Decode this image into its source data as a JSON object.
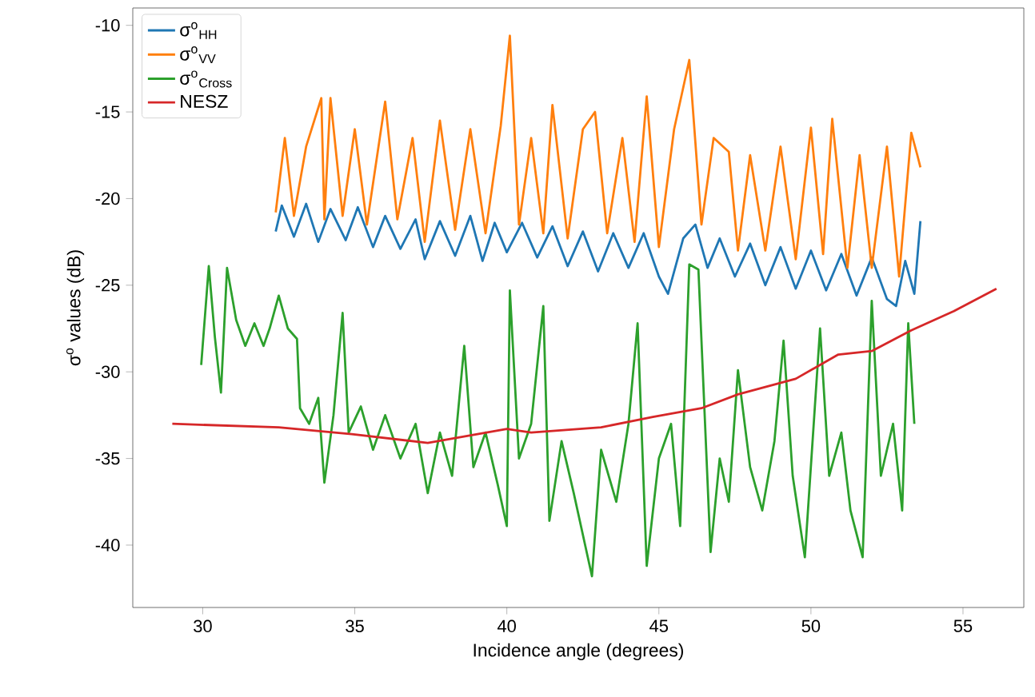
{
  "chart_data": {
    "type": "line",
    "xlabel": "Incidence angle (degrees)",
    "ylabel": "σ$^{o}$ values (dB)",
    "xlim": [
      27.7,
      57.0
    ],
    "ylim": [
      -43.6,
      -9.0
    ],
    "xticks": [
      30,
      35,
      40,
      45,
      50,
      55
    ],
    "yticks": [
      -40,
      -35,
      -30,
      -25,
      -20,
      -15,
      -10
    ],
    "legend": "top left",
    "series": [
      {
        "name": "σ$^{o}$$_{HH}$",
        "color": "#1f77b4",
        "x": [
          32.4,
          32.6,
          33.0,
          33.4,
          33.8,
          34.2,
          34.7,
          35.1,
          35.6,
          36.0,
          36.5,
          37.0,
          37.3,
          37.8,
          38.3,
          38.8,
          39.2,
          39.6,
          40.0,
          40.5,
          41.0,
          41.5,
          42.0,
          42.5,
          43.0,
          43.5,
          44.0,
          44.5,
          45.0,
          45.3,
          45.8,
          46.2,
          46.6,
          47.0,
          47.5,
          48.0,
          48.5,
          49.0,
          49.5,
          50.0,
          50.5,
          51.0,
          51.5,
          52.0,
          52.5,
          52.8,
          53.1,
          53.4,
          53.6
        ],
        "values": [
          -21.9,
          -20.4,
          -22.2,
          -20.3,
          -22.5,
          -20.6,
          -22.4,
          -20.5,
          -22.8,
          -21.0,
          -22.9,
          -21.2,
          -23.5,
          -21.3,
          -23.3,
          -21.0,
          -23.6,
          -21.4,
          -23.1,
          -21.4,
          -23.4,
          -21.6,
          -23.9,
          -21.9,
          -24.2,
          -22.0,
          -24.0,
          -22.0,
          -24.5,
          -25.5,
          -22.3,
          -21.5,
          -24.0,
          -22.3,
          -24.5,
          -22.6,
          -25.0,
          -22.8,
          -25.2,
          -23.0,
          -25.3,
          -23.2,
          -25.6,
          -23.4,
          -25.8,
          -26.2,
          -23.6,
          -25.5,
          -21.3
        ]
      },
      {
        "name": "σ$^{o}$$_{VV}$",
        "color": "#ff7f0e",
        "x": [
          32.4,
          32.7,
          33.0,
          33.4,
          33.9,
          34.0,
          34.2,
          34.6,
          35.0,
          35.4,
          36.0,
          36.4,
          36.9,
          37.3,
          37.8,
          38.3,
          38.8,
          39.3,
          39.8,
          40.1,
          40.4,
          40.8,
          41.2,
          41.5,
          42.0,
          42.5,
          42.9,
          43.3,
          43.8,
          44.2,
          44.6,
          45.0,
          45.5,
          46.0,
          46.4,
          46.8,
          47.3,
          47.6,
          48.0,
          48.5,
          49.0,
          49.5,
          50.0,
          50.4,
          50.7,
          51.2,
          51.6,
          52.0,
          52.5,
          52.9,
          53.3,
          53.5,
          53.6
        ],
        "values": [
          -20.8,
          -16.5,
          -21.0,
          -17.0,
          -14.2,
          -21.2,
          -14.2,
          -21.0,
          -16.0,
          -21.5,
          -14.4,
          -21.2,
          -16.5,
          -22.5,
          -15.5,
          -21.8,
          -16.0,
          -22.0,
          -15.8,
          -10.6,
          -21.5,
          -16.5,
          -22.0,
          -14.6,
          -22.3,
          -16.0,
          -15.0,
          -22.0,
          -16.5,
          -22.5,
          -14.1,
          -22.8,
          -16.0,
          -12.0,
          -21.5,
          -16.5,
          -17.3,
          -23.0,
          -17.5,
          -23.0,
          -17.0,
          -23.5,
          -15.9,
          -23.2,
          -15.4,
          -24.0,
          -17.5,
          -24.0,
          -17.0,
          -24.5,
          -16.2,
          -17.5,
          -18.2
        ]
      },
      {
        "name": "σ$^{o}$$_{Cross}$",
        "color": "#2ca02c",
        "x": [
          29.95,
          30.2,
          30.4,
          30.6,
          30.8,
          31.1,
          31.4,
          31.7,
          32.0,
          32.2,
          32.5,
          32.8,
          33.1,
          33.2,
          33.5,
          33.8,
          34.0,
          34.3,
          34.6,
          34.8,
          35.2,
          35.6,
          36.0,
          36.5,
          37.0,
          37.4,
          37.8,
          38.2,
          38.6,
          38.9,
          39.3,
          39.7,
          40.0,
          40.1,
          40.4,
          40.8,
          41.2,
          41.4,
          41.8,
          42.2,
          42.8,
          43.1,
          43.6,
          44.0,
          44.3,
          44.6,
          45.0,
          45.4,
          45.7,
          46.0,
          46.3,
          46.7,
          47.0,
          47.3,
          47.6,
          48.0,
          48.4,
          48.8,
          49.1,
          49.4,
          49.8,
          50.3,
          50.6,
          51.0,
          51.3,
          51.7,
          52.0,
          52.3,
          52.7,
          53.0,
          53.2,
          53.4
        ],
        "values": [
          -29.6,
          -23.9,
          -28.0,
          -31.2,
          -24.0,
          -27.0,
          -28.5,
          -27.2,
          -28.5,
          -27.5,
          -25.6,
          -27.5,
          -28.1,
          -32.1,
          -33.0,
          -31.5,
          -36.4,
          -32.5,
          -26.6,
          -33.5,
          -32.0,
          -34.5,
          -32.5,
          -35.0,
          -33.0,
          -37.0,
          -33.5,
          -36.0,
          -28.5,
          -35.5,
          -33.5,
          -36.5,
          -38.9,
          -25.3,
          -35.0,
          -33.0,
          -26.2,
          -38.6,
          -34.0,
          -37.0,
          -41.8,
          -34.5,
          -37.5,
          -33.0,
          -27.2,
          -41.2,
          -35.0,
          -33.0,
          -38.9,
          -23.8,
          -24.1,
          -40.4,
          -35.0,
          -37.5,
          -29.9,
          -35.5,
          -38.0,
          -34.0,
          -28.2,
          -36.0,
          -40.7,
          -27.5,
          -36.0,
          -33.5,
          -38.0,
          -40.7,
          -25.9,
          -36.0,
          -33.0,
          -38.0,
          -27.2,
          -33.0
        ]
      },
      {
        "name": "NESZ",
        "color": "#d62728",
        "x": [
          29.0,
          32.5,
          34.9,
          37.4,
          40.0,
          40.8,
          43.1,
          44.8,
          46.4,
          47.6,
          49.5,
          50.9,
          52.0,
          53.3,
          54.7,
          56.1
        ],
        "values": [
          -33.0,
          -33.2,
          -33.6,
          -34.1,
          -33.3,
          -33.5,
          -33.2,
          -32.6,
          -32.1,
          -31.3,
          -30.4,
          -29.0,
          -28.8,
          -27.6,
          -26.5,
          -25.2
        ]
      }
    ]
  }
}
